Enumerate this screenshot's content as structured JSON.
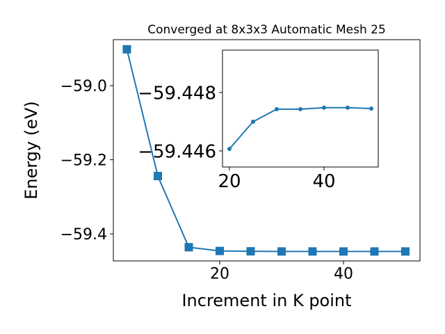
{
  "chart_data": [
    {
      "type": "line",
      "title": "Converged at 8x3x3 Automatic Mesh 25",
      "x_label": "Increment in K point",
      "y_label": "Energy (eV)",
      "x": [
        5,
        10,
        15,
        20,
        25,
        30,
        35,
        40,
        45,
        50
      ],
      "series": [
        {
          "color": "#1f77b4",
          "marker": "square",
          "values": [
            -58.902,
            -59.244,
            -59.436,
            -59.44607,
            -59.447,
            -59.44743,
            -59.44743,
            -59.44748,
            -59.44748,
            -59.44745
          ]
        }
      ],
      "xlim": [
        2.81,
        52.36
      ],
      "ylim": [
        -59.473,
        -58.876
      ],
      "xticks": [
        20,
        40
      ],
      "yticks": [
        {
          "value": -59.4,
          "label": "−59.4"
        },
        {
          "value": -59.2,
          "label": "−59.2"
        },
        {
          "value": -59.0,
          "label": "−59.0"
        }
      ]
    },
    {
      "type": "line",
      "x": [
        20,
        25,
        30,
        35,
        40,
        45,
        50
      ],
      "series": [
        {
          "color": "#1f77b4",
          "marker": "circle",
          "values": [
            -59.44607,
            -59.447,
            -59.44743,
            -59.44743,
            -59.44748,
            -59.44748,
            -59.44745
          ]
        }
      ],
      "xlim": [
        18.53,
        51.47
      ],
      "ylim": [
        -59.44545,
        -59.44945
      ],
      "xticks": [
        20,
        40
      ],
      "yticks": [
        {
          "value": -59.446,
          "label": "−59.446"
        },
        {
          "value": -59.448,
          "label": "−59.448"
        }
      ]
    }
  ]
}
